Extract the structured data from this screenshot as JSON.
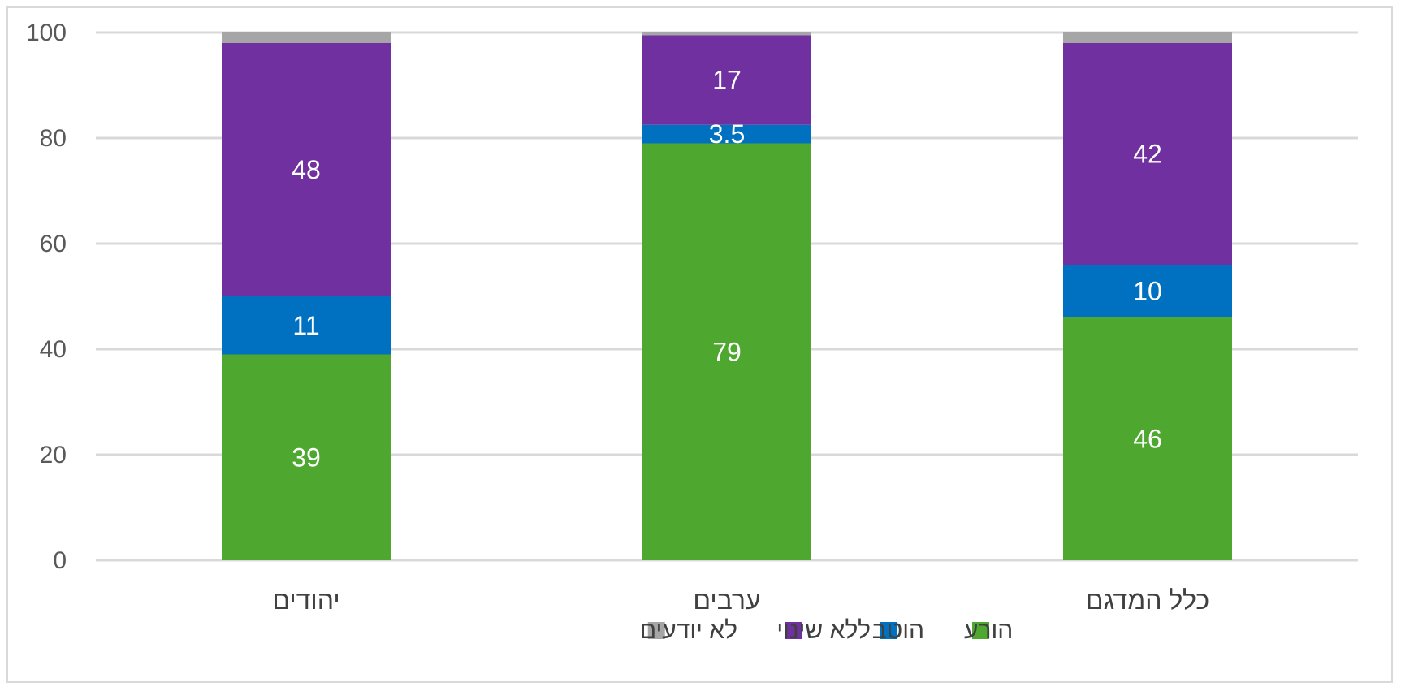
{
  "chart_data": {
    "type": "bar",
    "stacked": true,
    "categories": [
      "יהודים",
      "ערבים",
      "כלל המדגם"
    ],
    "series": [
      {
        "name": "הורע",
        "color": "#4ea72e",
        "values": [
          39,
          79,
          46
        ]
      },
      {
        "name": "הוטב",
        "color": "#0070c0",
        "values": [
          11,
          3.5,
          10
        ]
      },
      {
        "name": "ללא שינוי",
        "color": "#7030a0",
        "values": [
          48,
          17,
          42
        ]
      },
      {
        "name": "לא יודעים",
        "color": "#a6a6a6",
        "values": [
          2,
          0.5,
          2
        ]
      }
    ],
    "data_labels": [
      [
        "39",
        "79",
        "46"
      ],
      [
        "11",
        "3.5",
        "10"
      ],
      [
        "48",
        "17",
        "42"
      ],
      [
        "",
        "",
        ""
      ]
    ],
    "y_ticks": [
      "0",
      "20",
      "40",
      "60",
      "80",
      "100"
    ],
    "ylim": [
      0,
      100
    ],
    "grid": true,
    "legend_position": "bottom",
    "title": "",
    "xlabel": "",
    "ylabel": ""
  }
}
